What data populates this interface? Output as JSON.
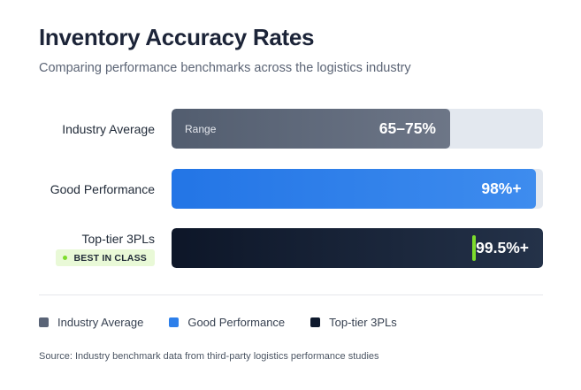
{
  "colors": {
    "industry_average": "#5a6477",
    "good_performance": "#2d7fea",
    "top_tier": "#0f1a2e",
    "track": "#e3e8ef",
    "best_in_class": "#7ddc2c"
  },
  "chart_data": {
    "type": "bar",
    "orientation": "horizontal",
    "title": "Inventory Accuracy Rates",
    "subtitle": "Comparing performance benchmarks across the logistics industry",
    "value_unit": "%",
    "categories": [
      "Industry Average",
      "Good Performance",
      "Top-tier 3PLs"
    ],
    "xlim": [
      0,
      100
    ],
    "rows": [
      {
        "label": "Industry Average",
        "value_text": "65–75%",
        "range": [
          65,
          75
        ],
        "value": 70,
        "fill_fraction": 0.75,
        "tag": "Range",
        "color": "#5a6477"
      },
      {
        "label": "Good Performance",
        "value_text": "98%+",
        "value": 98,
        "fill_fraction": 0.98,
        "color": "#2d7fea"
      },
      {
        "label": "Top-tier 3PLs",
        "value_text": "99.5%+",
        "value": 99.5,
        "fill_fraction": 1.0,
        "marker_fraction": 0.81,
        "badge": "BEST IN CLASS",
        "color": "#0f1a2e"
      }
    ],
    "legend": [
      {
        "label": "Industry Average",
        "color": "#5a6477"
      },
      {
        "label": "Good Performance",
        "color": "#2d7fea"
      },
      {
        "label": "Top-tier 3PLs",
        "color": "#0f1a2e"
      }
    ],
    "legend_position": "bottom-left",
    "grid": false,
    "source": "Source: Industry benchmark data from third-party logistics performance studies"
  }
}
